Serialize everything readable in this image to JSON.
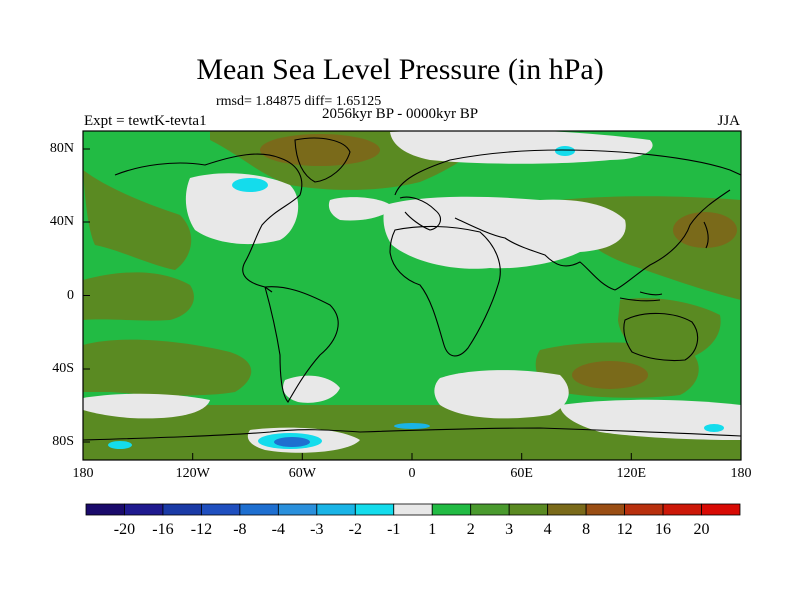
{
  "title": "Mean Sea Level Pressure (in hPa)",
  "stats": "rmsd= 1.84875 diff= 1.65125",
  "subtitle": "2056kyr BP - 0000kyr BP",
  "experiment": "Expt = tewtK-tevta1",
  "season": "JJA",
  "lat_labels": [
    "80N",
    "40N",
    "0",
    "40S",
    "80S"
  ],
  "lon_labels": [
    "180",
    "120W",
    "60W",
    "0",
    "60E",
    "120E",
    "180"
  ],
  "colorbar": {
    "labels": [
      "-20",
      "-16",
      "-12",
      "-8",
      "-4",
      "-3",
      "-2",
      "-1",
      "1",
      "2",
      "3",
      "4",
      "8",
      "12",
      "16",
      "20"
    ],
    "colors": [
      "#1a0a6b",
      "#1f1a8f",
      "#1a3aa6",
      "#1f4fbf",
      "#1e6fd0",
      "#2a90dc",
      "#1ab4e6",
      "#14dcec",
      "#e8e8e8",
      "#22bb44",
      "#4a9a2e",
      "#5a8a22",
      "#7a6a1a",
      "#9a4e14",
      "#b8300e",
      "#cc1808",
      "#d80a04"
    ]
  },
  "colors": {
    "ocean_base": "#22bb44",
    "positive_mid": "#5a8a22",
    "positive_high": "#7a6a1a",
    "near_zero": "#e8e8e8",
    "negative": "#14dcec",
    "negative_strong": "#1e6fd0"
  }
}
